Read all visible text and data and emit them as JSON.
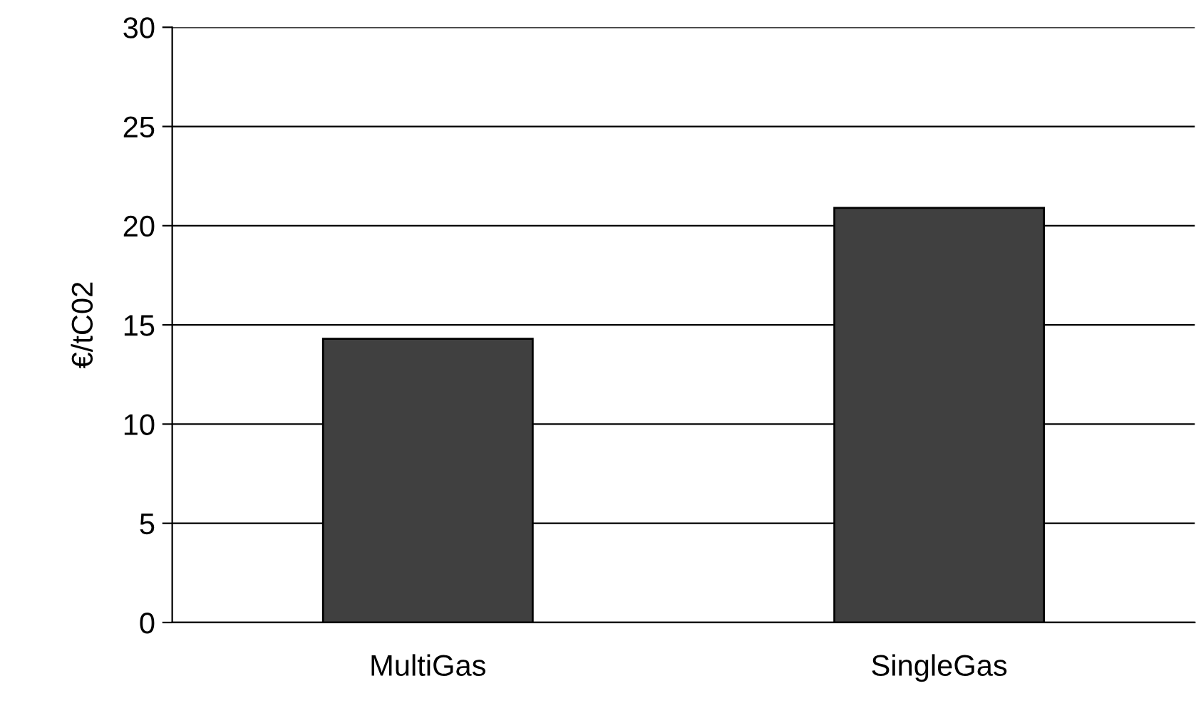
{
  "chart_data": {
    "type": "bar",
    "ylabel": "€/tC02",
    "categories": [
      "MultiGas",
      "SingleGas"
    ],
    "values": [
      14.3,
      20.9
    ],
    "color": "#404040",
    "ylim": [
      0,
      30
    ],
    "yticks": [
      0,
      5,
      10,
      15,
      20,
      25,
      30
    ],
    "grid": "y",
    "legend": false
  }
}
